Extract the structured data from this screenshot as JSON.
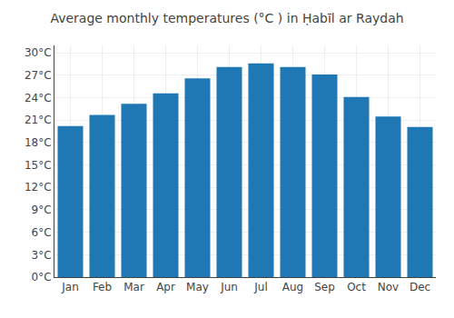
{
  "chart_data": {
    "type": "bar",
    "title": "Average monthly temperatures (°C ) in Ḥabīl ar Raydah",
    "categories": [
      "Jan",
      "Feb",
      "Mar",
      "Apr",
      "May",
      "Jun",
      "Jul",
      "Aug",
      "Sep",
      "Oct",
      "Nov",
      "Dec"
    ],
    "values": [
      20.2,
      21.7,
      23.2,
      24.6,
      26.6,
      28.1,
      28.6,
      28.1,
      27.1,
      24.1,
      21.5,
      20.1
    ],
    "ylim": [
      0,
      31
    ],
    "yticks": [
      {
        "value": 0,
        "label": "0°C"
      },
      {
        "value": 3,
        "label": "3°C"
      },
      {
        "value": 6,
        "label": "6°C"
      },
      {
        "value": 9,
        "label": "9°C"
      },
      {
        "value": 12,
        "label": "12°C"
      },
      {
        "value": 15,
        "label": "15°C"
      },
      {
        "value": 18,
        "label": "18°C"
      },
      {
        "value": 21,
        "label": "21°C"
      },
      {
        "value": 24,
        "label": "24°C"
      },
      {
        "value": 27,
        "label": "27°C"
      },
      {
        "value": 30,
        "label": "30°C"
      }
    ],
    "grid": true
  }
}
